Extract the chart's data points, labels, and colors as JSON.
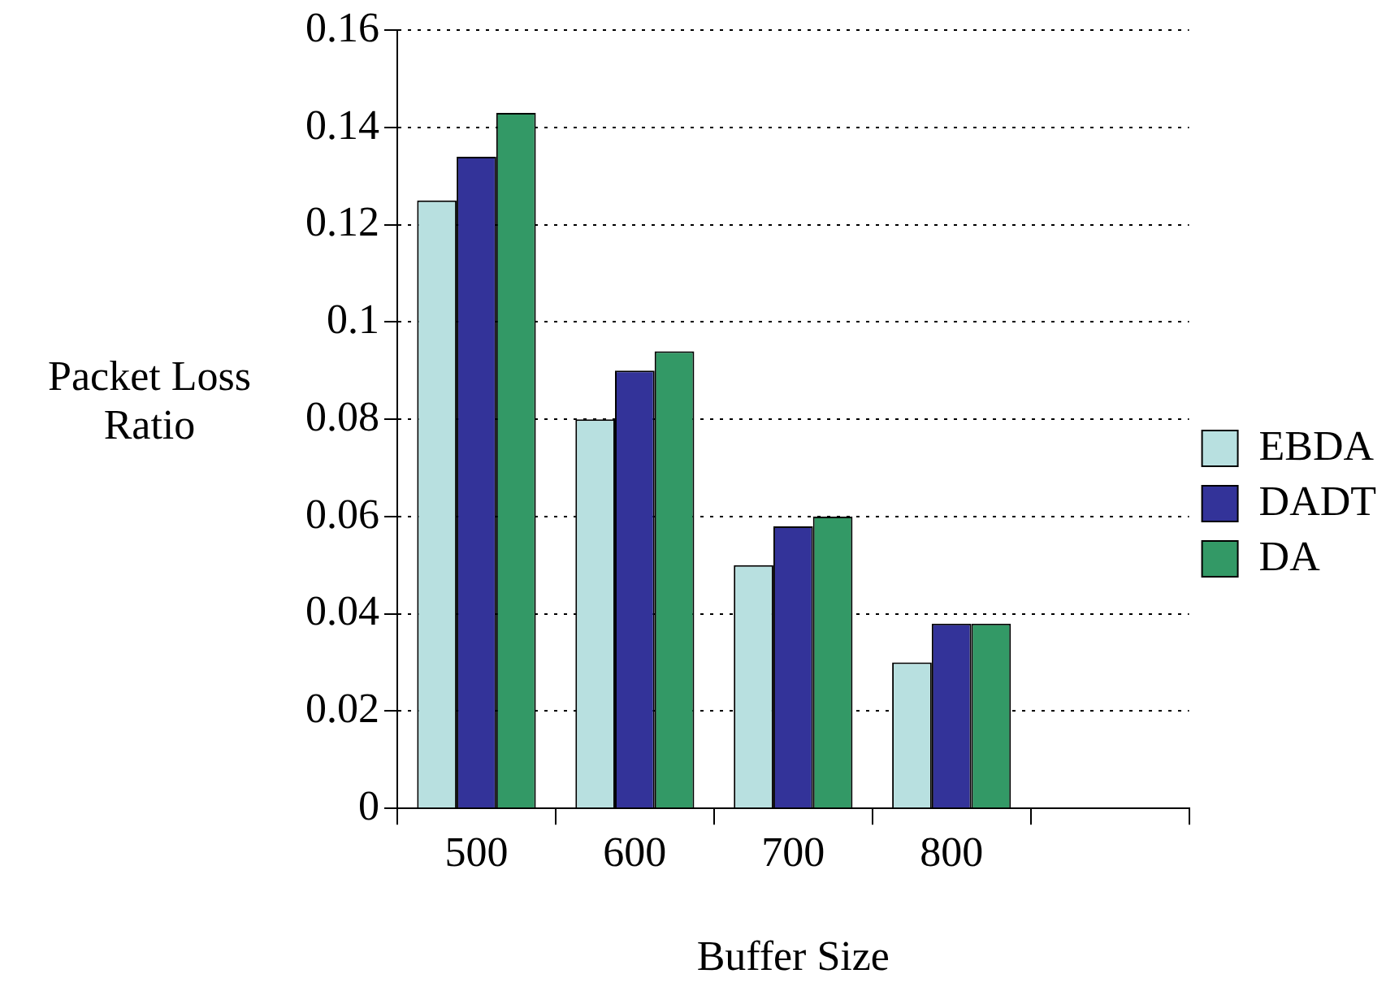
{
  "chart_data": {
    "type": "bar",
    "xlabel": "Buffer Size",
    "ylabel": "Packet Loss Ratio",
    "categories": [
      "500",
      "600",
      "700",
      "800",
      null
    ],
    "series": [
      {
        "name": "EBDA",
        "color": "#b8e0e0",
        "values": [
          0.125,
          0.08,
          0.05,
          0.03,
          null
        ]
      },
      {
        "name": "DADT",
        "color": "#333399",
        "values": [
          0.134,
          0.09,
          0.058,
          0.038,
          null
        ]
      },
      {
        "name": "DA",
        "color": "#339966",
        "values": [
          0.143,
          0.094,
          0.06,
          0.038,
          null
        ]
      }
    ],
    "ylim": [
      0,
      0.16
    ],
    "yticks": [
      0,
      0.02,
      0.04,
      0.06,
      0.08,
      0.1,
      0.12,
      0.14,
      0.16
    ],
    "grid": "y",
    "legend": "right"
  }
}
